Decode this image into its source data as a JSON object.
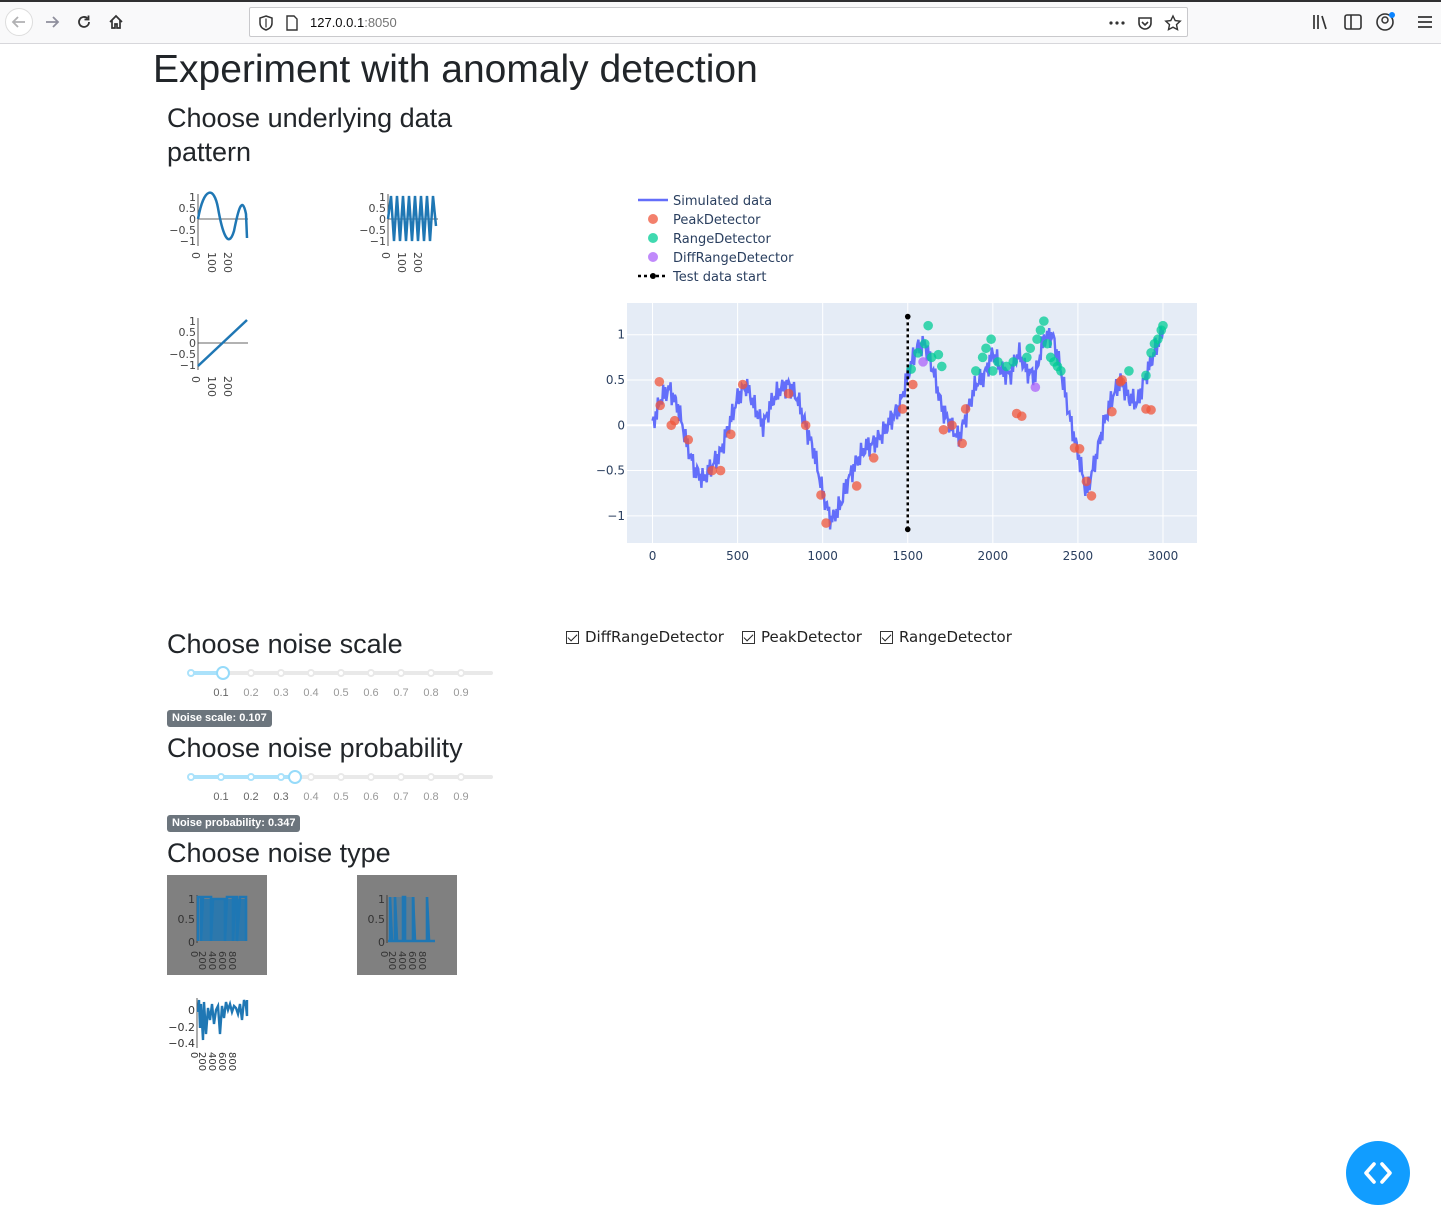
{
  "browser": {
    "url_host": "127.0.0.1",
    "url_port": ":8050"
  },
  "page": {
    "title": "Experiment with anomaly detection",
    "pattern_heading": "Choose underlying data pattern",
    "noise_scale_heading": "Choose noise scale",
    "noise_prob_heading": "Choose noise probability",
    "noise_type_heading": "Choose noise type"
  },
  "pattern_thumbnails": [
    {
      "name": "sine-slow",
      "yticks": [
        "1",
        "0.5",
        "0",
        "−0.5",
        "−1"
      ],
      "xticks": [
        "0",
        "100",
        "200"
      ]
    },
    {
      "name": "sine-fast",
      "yticks": [
        "1",
        "0.5",
        "0",
        "−0.5",
        "−1"
      ],
      "xticks": [
        "0",
        "100",
        "200"
      ]
    },
    {
      "name": "linear",
      "yticks": [
        "1",
        "0.5",
        "0",
        "−0.5",
        "−1"
      ],
      "xticks": [
        "0",
        "100",
        "200"
      ]
    }
  ],
  "noise_scale": {
    "marks": [
      "0.1",
      "0.2",
      "0.3",
      "0.4",
      "0.5",
      "0.6",
      "0.7",
      "0.8",
      "0.9"
    ],
    "value": 0.107,
    "badge": "Noise scale: 0.107"
  },
  "noise_probability": {
    "marks": [
      "0.1",
      "0.2",
      "0.3",
      "0.4",
      "0.5",
      "0.6",
      "0.7",
      "0.8",
      "0.9"
    ],
    "value": 0.347,
    "badge": "Noise probability: 0.347"
  },
  "noise_thumbnails": [
    {
      "name": "noise-uniform",
      "selected": true,
      "yticks": [
        "1",
        "0.5",
        "0"
      ],
      "xticks": [
        "0",
        "200",
        "400",
        "600",
        "800"
      ]
    },
    {
      "name": "noise-sparse",
      "selected": true,
      "yticks": [
        "1",
        "0.5",
        "0"
      ],
      "xticks": [
        "0",
        "200",
        "400",
        "600",
        "800"
      ]
    },
    {
      "name": "noise-negative",
      "selected": false,
      "yticks": [
        "0",
        "−0.2",
        "−0.4"
      ],
      "xticks": [
        "0",
        "200",
        "400",
        "600",
        "800"
      ]
    }
  ],
  "detectors": [
    {
      "label": "DiffRangeDetector",
      "checked": true
    },
    {
      "label": "PeakDetector",
      "checked": true
    },
    {
      "label": "RangeDetector",
      "checked": true
    }
  ],
  "colors": {
    "simulated": "#636efa",
    "peak": "#ef553b",
    "range": "#00cc96",
    "diffrange": "#ab63fa",
    "test_start": "#000000",
    "plot_bg": "#e5ecf6",
    "accent": "#119dff",
    "thumb_line": "#1f77b4"
  },
  "chart_data": {
    "type": "line",
    "legend": [
      "Simulated data",
      "PeakDetector",
      "RangeDetector",
      "DiffRangeDetector",
      "Test data start"
    ],
    "legend_position": "top-left",
    "xlim": [
      -150,
      3200
    ],
    "ylim": [
      -1.3,
      1.35
    ],
    "xticks": [
      0,
      500,
      1000,
      1500,
      2000,
      2500,
      3000
    ],
    "yticks": [
      -1,
      -0.5,
      0,
      0.5,
      1
    ],
    "ytick_labels": [
      "−1",
      "−0.5",
      "0",
      "0.5",
      "1"
    ],
    "grid": true,
    "series": [
      {
        "name": "Simulated data",
        "x": [
          0,
          50,
          100,
          150,
          200,
          250,
          300,
          350,
          400,
          450,
          500,
          550,
          600,
          650,
          700,
          750,
          800,
          850,
          900,
          950,
          1000,
          1050,
          1100,
          1150,
          1200,
          1250,
          1300,
          1350,
          1400,
          1450,
          1500,
          1550,
          1600,
          1650,
          1700,
          1750,
          1800,
          1850,
          1900,
          1950,
          2000,
          2050,
          2100,
          2150,
          2200,
          2250,
          2300,
          2350,
          2400,
          2450,
          2500,
          2550,
          2600,
          2650,
          2700,
          2750,
          2800,
          2850,
          2900,
          2950,
          3000
        ],
        "y": [
          0.0,
          0.3,
          0.4,
          0.2,
          -0.2,
          -0.5,
          -0.6,
          -0.45,
          -0.3,
          0.0,
          0.3,
          0.45,
          0.2,
          0.0,
          0.25,
          0.4,
          0.45,
          0.3,
          0.0,
          -0.3,
          -0.75,
          -1.05,
          -0.9,
          -0.6,
          -0.4,
          -0.25,
          -0.2,
          -0.1,
          0.05,
          0.2,
          0.55,
          0.85,
          0.9,
          0.6,
          0.2,
          0.0,
          -0.15,
          0.15,
          0.45,
          0.55,
          0.8,
          0.6,
          0.55,
          0.8,
          0.6,
          0.55,
          0.95,
          1.0,
          0.6,
          0.1,
          -0.3,
          -0.75,
          -0.4,
          0.0,
          0.3,
          0.5,
          0.3,
          0.25,
          0.55,
          0.8,
          1.05
        ]
      },
      {
        "name": "PeakDetector",
        "x": [
          40,
          45,
          110,
          130,
          210,
          350,
          400,
          460,
          530,
          800,
          900,
          990,
          1020,
          1200,
          1300,
          1470,
          1530,
          1710,
          1760,
          1820,
          1840,
          2140,
          2170,
          2480,
          2510,
          2550,
          2580,
          2700,
          2750,
          2760,
          2900,
          2930
        ],
        "y": [
          0.48,
          0.22,
          0.0,
          0.05,
          -0.16,
          -0.5,
          -0.5,
          -0.1,
          0.45,
          0.35,
          0.0,
          -0.77,
          -1.08,
          -0.67,
          -0.36,
          0.18,
          0.45,
          -0.05,
          0.0,
          -0.2,
          0.18,
          0.13,
          0.1,
          -0.25,
          -0.26,
          -0.62,
          -0.78,
          0.15,
          0.48,
          0.5,
          0.18,
          0.17
        ]
      },
      {
        "name": "RangeDetector",
        "x": [
          1520,
          1560,
          1600,
          1620,
          1640,
          1680,
          1700,
          1900,
          1940,
          1960,
          1990,
          2000,
          2030,
          2080,
          2120,
          2200,
          2220,
          2260,
          2280,
          2300,
          2320,
          2340,
          2360,
          2380,
          2400,
          2800,
          2900,
          2930,
          2950,
          2970,
          2990,
          3000
        ],
        "y": [
          0.62,
          0.8,
          0.9,
          1.1,
          0.75,
          0.78,
          0.65,
          0.6,
          0.75,
          0.85,
          0.95,
          0.6,
          0.7,
          0.65,
          0.7,
          0.75,
          0.85,
          0.95,
          1.05,
          1.15,
          0.9,
          0.75,
          0.7,
          0.65,
          0.6,
          0.6,
          0.55,
          0.8,
          0.9,
          0.95,
          1.05,
          1.1
        ]
      },
      {
        "name": "DiffRangeDetector",
        "x": [
          1590,
          2250
        ],
        "y": [
          0.7,
          0.42
        ]
      },
      {
        "name": "Test data start",
        "x": [
          1500,
          1500
        ],
        "y": [
          -1.15,
          1.2
        ]
      }
    ]
  }
}
